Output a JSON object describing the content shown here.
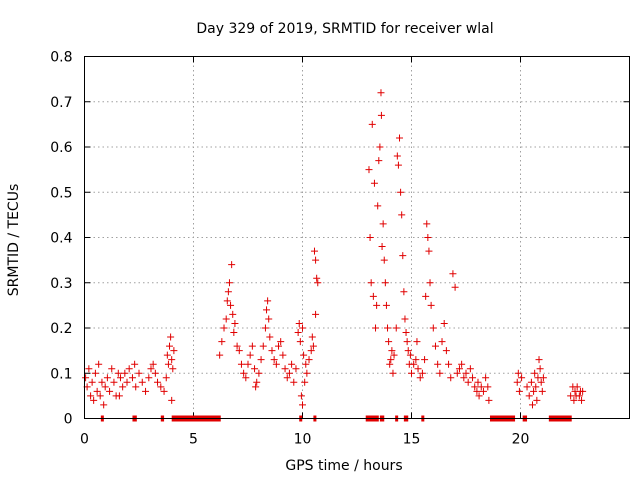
{
  "chart_data": {
    "type": "scatter",
    "title": "Day 329 of 2019, SRMTID for receiver wlal",
    "xlabel": "GPS time / hours",
    "ylabel": "SRMTID / TECUs",
    "xlim": [
      0,
      25
    ],
    "ylim": [
      0,
      0.8
    ],
    "grid": true,
    "marker": "+",
    "color": "#e00000",
    "xticks": [
      0,
      5,
      10,
      15,
      20
    ],
    "xtick_labels": [
      "0",
      "5",
      "10",
      "15",
      "20"
    ],
    "yticks": [
      0,
      0.1,
      0.2,
      0.3,
      0.4,
      0.5,
      0.6,
      0.7,
      0.8
    ],
    "ytick_labels": [
      "0",
      "0.1",
      "0.2",
      "0.3",
      "0.4",
      "0.5",
      "0.6",
      "0.7",
      "0.8"
    ],
    "series": [
      {
        "name": "SRMTID",
        "points": [
          [
            0.05,
            0.09
          ],
          [
            0.12,
            0.07
          ],
          [
            0.2,
            0.11
          ],
          [
            0.28,
            0.05
          ],
          [
            0.35,
            0.08
          ],
          [
            0.42,
            0.04
          ],
          [
            0.5,
            0.1
          ],
          [
            0.58,
            0.06
          ],
          [
            0.65,
            0.12
          ],
          [
            0.72,
            0.05
          ],
          [
            0.8,
            0.08
          ],
          [
            0.88,
            0.03
          ],
          [
            0.95,
            0.07
          ],
          [
            1.05,
            0.09
          ],
          [
            1.15,
            0.06
          ],
          [
            1.25,
            0.11
          ],
          [
            1.35,
            0.08
          ],
          [
            1.45,
            0.05
          ],
          [
            1.55,
            0.1
          ],
          [
            1.65,
            0.09
          ],
          [
            1.75,
            0.07
          ],
          [
            1.85,
            0.1
          ],
          [
            1.95,
            0.08
          ],
          [
            2.05,
            0.11
          ],
          [
            2.2,
            0.09
          ],
          [
            2.35,
            0.07
          ],
          [
            2.5,
            0.1
          ],
          [
            2.65,
            0.08
          ],
          [
            2.8,
            0.06
          ],
          [
            2.95,
            0.09
          ],
          [
            3.05,
            0.11
          ],
          [
            3.15,
            0.12
          ],
          [
            3.25,
            0.1
          ],
          [
            3.35,
            0.08
          ],
          [
            3.5,
            0.07
          ],
          [
            3.65,
            0.06
          ],
          [
            3.75,
            0.09
          ],
          [
            3.8,
            0.14
          ],
          [
            3.85,
            0.12
          ],
          [
            3.9,
            0.16
          ],
          [
            3.95,
            0.18
          ],
          [
            4.0,
            0.13
          ],
          [
            4.05,
            0.11
          ],
          [
            4.1,
            0.15
          ],
          [
            6.2,
            0.14
          ],
          [
            6.3,
            0.17
          ],
          [
            6.4,
            0.2
          ],
          [
            6.5,
            0.22
          ],
          [
            6.55,
            0.26
          ],
          [
            6.6,
            0.28
          ],
          [
            6.65,
            0.3
          ],
          [
            6.7,
            0.25
          ],
          [
            6.75,
            0.34
          ],
          [
            6.8,
            0.23
          ],
          [
            6.85,
            0.19
          ],
          [
            6.9,
            0.21
          ],
          [
            7.0,
            0.16
          ],
          [
            7.1,
            0.15
          ],
          [
            7.2,
            0.12
          ],
          [
            7.3,
            0.1
          ],
          [
            7.4,
            0.09
          ],
          [
            7.5,
            0.12
          ],
          [
            7.6,
            0.14
          ],
          [
            7.7,
            0.16
          ],
          [
            7.8,
            0.11
          ],
          [
            7.9,
            0.08
          ],
          [
            8.0,
            0.1
          ],
          [
            8.1,
            0.13
          ],
          [
            8.2,
            0.16
          ],
          [
            8.3,
            0.2
          ],
          [
            8.35,
            0.24
          ],
          [
            8.4,
            0.26
          ],
          [
            8.45,
            0.22
          ],
          [
            8.5,
            0.18
          ],
          [
            8.6,
            0.15
          ],
          [
            8.7,
            0.13
          ],
          [
            8.8,
            0.12
          ],
          [
            8.9,
            0.16
          ],
          [
            9.0,
            0.17
          ],
          [
            9.1,
            0.14
          ],
          [
            9.2,
            0.11
          ],
          [
            9.3,
            0.09
          ],
          [
            9.4,
            0.1
          ],
          [
            9.5,
            0.12
          ],
          [
            9.6,
            0.08
          ],
          [
            9.7,
            0.11
          ],
          [
            9.8,
            0.19
          ],
          [
            9.85,
            0.21
          ],
          [
            9.9,
            0.17
          ],
          [
            10.0,
            0.2
          ],
          [
            10.05,
            0.14
          ],
          [
            10.1,
            0.08
          ],
          [
            10.15,
            0.12
          ],
          [
            10.2,
            0.1
          ],
          [
            10.3,
            0.13
          ],
          [
            10.4,
            0.15
          ],
          [
            10.45,
            0.18
          ],
          [
            10.5,
            0.16
          ],
          [
            10.55,
            0.37
          ],
          [
            10.6,
            0.35
          ],
          [
            10.65,
            0.31
          ],
          [
            10.7,
            0.3
          ],
          [
            10.6,
            0.23
          ],
          [
            13.05,
            0.55
          ],
          [
            13.1,
            0.4
          ],
          [
            13.15,
            0.3
          ],
          [
            13.2,
            0.65
          ],
          [
            13.25,
            0.27
          ],
          [
            13.3,
            0.52
          ],
          [
            13.35,
            0.2
          ],
          [
            13.4,
            0.25
          ],
          [
            13.45,
            0.47
          ],
          [
            13.5,
            0.57
          ],
          [
            13.55,
            0.6
          ],
          [
            13.6,
            0.72
          ],
          [
            13.62,
            0.67
          ],
          [
            13.65,
            0.38
          ],
          [
            13.7,
            0.43
          ],
          [
            13.75,
            0.35
          ],
          [
            13.8,
            0.3
          ],
          [
            13.85,
            0.25
          ],
          [
            13.9,
            0.2
          ],
          [
            13.95,
            0.17
          ],
          [
            14.0,
            0.12
          ],
          [
            14.05,
            0.13
          ],
          [
            14.1,
            0.15
          ],
          [
            14.2,
            0.14
          ],
          [
            14.3,
            0.2
          ],
          [
            14.35,
            0.58
          ],
          [
            14.4,
            0.56
          ],
          [
            14.45,
            0.62
          ],
          [
            14.5,
            0.5
          ],
          [
            14.55,
            0.45
          ],
          [
            14.6,
            0.36
          ],
          [
            14.65,
            0.28
          ],
          [
            14.7,
            0.22
          ],
          [
            14.75,
            0.19
          ],
          [
            14.8,
            0.17
          ],
          [
            14.85,
            0.15
          ],
          [
            14.9,
            0.12
          ],
          [
            14.95,
            0.14
          ],
          [
            15.0,
            0.1
          ],
          [
            15.1,
            0.12
          ],
          [
            15.2,
            0.13
          ],
          [
            15.3,
            0.11
          ],
          [
            15.4,
            0.09
          ],
          [
            15.5,
            0.1
          ],
          [
            15.6,
            0.13
          ],
          [
            15.65,
            0.27
          ],
          [
            15.7,
            0.43
          ],
          [
            15.75,
            0.4
          ],
          [
            15.8,
            0.37
          ],
          [
            15.85,
            0.3
          ],
          [
            15.9,
            0.25
          ],
          [
            16.0,
            0.2
          ],
          [
            16.1,
            0.16
          ],
          [
            16.2,
            0.12
          ],
          [
            16.3,
            0.1
          ],
          [
            16.4,
            0.17
          ],
          [
            16.5,
            0.21
          ],
          [
            16.6,
            0.15
          ],
          [
            16.7,
            0.12
          ],
          [
            16.8,
            0.09
          ],
          [
            16.9,
            0.32
          ],
          [
            17.0,
            0.29
          ],
          [
            17.1,
            0.1
          ],
          [
            17.2,
            0.11
          ],
          [
            17.3,
            0.12
          ],
          [
            17.4,
            0.09
          ],
          [
            17.5,
            0.1
          ],
          [
            17.6,
            0.08
          ],
          [
            17.7,
            0.11
          ],
          [
            17.8,
            0.09
          ],
          [
            17.9,
            0.07
          ],
          [
            18.0,
            0.06
          ],
          [
            18.05,
            0.08
          ],
          [
            18.1,
            0.05
          ],
          [
            18.2,
            0.07
          ],
          [
            18.3,
            0.06
          ],
          [
            18.4,
            0.09
          ],
          [
            18.5,
            0.07
          ],
          [
            18.55,
            0.04
          ],
          [
            19.85,
            0.08
          ],
          [
            19.95,
            0.06
          ],
          [
            20.05,
            0.09
          ],
          [
            20.3,
            0.07
          ],
          [
            20.4,
            0.05
          ],
          [
            20.5,
            0.08
          ],
          [
            20.55,
            0.03
          ],
          [
            20.6,
            0.06
          ],
          [
            20.65,
            0.1
          ],
          [
            20.7,
            0.07
          ],
          [
            20.8,
            0.09
          ],
          [
            20.85,
            0.13
          ],
          [
            20.9,
            0.11
          ],
          [
            20.95,
            0.08
          ],
          [
            21.0,
            0.06
          ],
          [
            21.05,
            0.09
          ],
          [
            22.3,
            0.05
          ],
          [
            22.4,
            0.07
          ],
          [
            22.45,
            0.04
          ],
          [
            22.5,
            0.06
          ],
          [
            22.55,
            0.05
          ],
          [
            22.6,
            0.07
          ],
          [
            22.7,
            0.05
          ],
          [
            22.75,
            0.06
          ],
          [
            22.8,
            0.04
          ],
          [
            22.85,
            0.06
          ],
          [
            1.6,
            0.05
          ],
          [
            2.3,
            0.12
          ],
          [
            4.0,
            0.04
          ],
          [
            9.95,
            0.05
          ],
          [
            14.15,
            0.1
          ],
          [
            15.25,
            0.17
          ],
          [
            19.9,
            0.1
          ],
          [
            20.75,
            0.04
          ],
          [
            10.0,
            0.03
          ],
          [
            7.85,
            0.07
          ]
        ],
        "zero_segments": [
          [
            0.75,
            0.85
          ],
          [
            2.2,
            2.4
          ],
          [
            3.5,
            3.65
          ],
          [
            4.0,
            6.25
          ],
          [
            9.85,
            9.95
          ],
          [
            10.5,
            10.6
          ],
          [
            12.9,
            13.5
          ],
          [
            13.55,
            13.75
          ],
          [
            14.25,
            14.35
          ],
          [
            14.65,
            14.85
          ],
          [
            15.45,
            15.5
          ],
          [
            18.6,
            19.75
          ],
          [
            20.1,
            20.3
          ],
          [
            21.3,
            22.35
          ]
        ]
      }
    ]
  }
}
